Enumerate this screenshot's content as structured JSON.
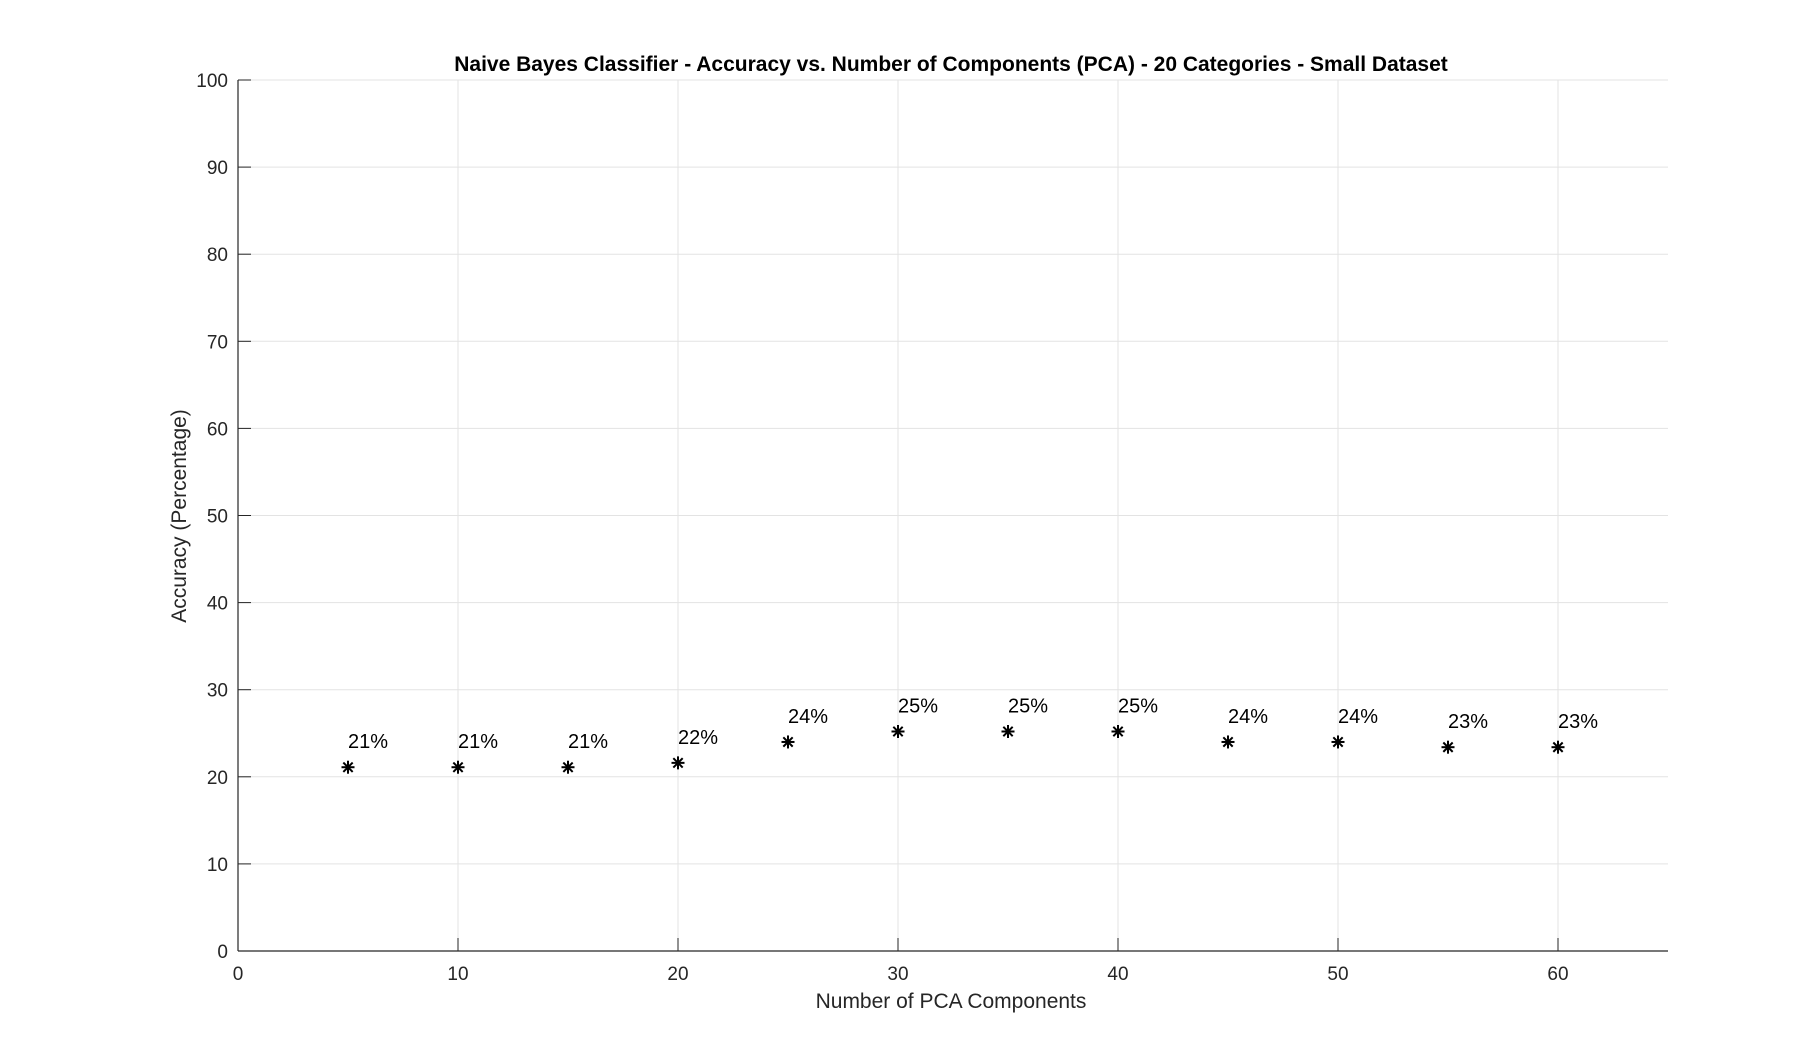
{
  "chart_data": {
    "type": "scatter",
    "title": "Naive Bayes Classifier - Accuracy vs. Number of Components (PCA) - 20 Categories - Small Dataset",
    "xlabel": "Number of PCA Components",
    "ylabel": "Accuracy (Percentage)",
    "xlim": [
      0,
      65
    ],
    "ylim": [
      0,
      100
    ],
    "xticks": [
      0,
      10,
      20,
      30,
      40,
      50,
      60
    ],
    "yticks": [
      0,
      10,
      20,
      30,
      40,
      50,
      60,
      70,
      80,
      90,
      100
    ],
    "grid": true,
    "marker": "asterisk",
    "series": [
      {
        "x": [
          5,
          10,
          15,
          20,
          25,
          30,
          35,
          40,
          45,
          50,
          55,
          60
        ],
        "y": [
          21.1,
          21.1,
          21.1,
          21.6,
          24.0,
          25.2,
          25.2,
          25.2,
          24.0,
          24.0,
          23.4,
          23.4
        ],
        "labels": [
          "21%",
          "21%",
          "21%",
          "22%",
          "24%",
          "25%",
          "25%",
          "25%",
          "24%",
          "24%",
          "23%",
          "23%"
        ]
      }
    ],
    "colors": {
      "marker": "#000000",
      "grid": "#e3e3e3",
      "axis": "#262626"
    }
  }
}
